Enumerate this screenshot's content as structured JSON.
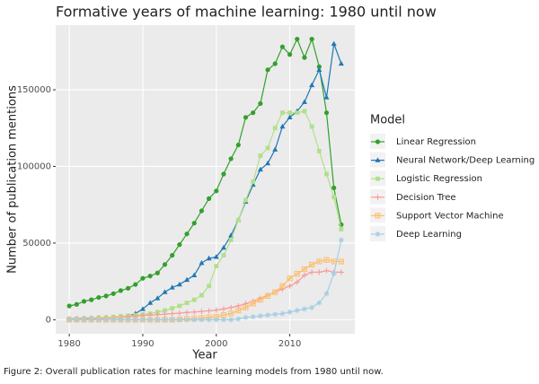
{
  "chart_data": {
    "type": "line",
    "title": "Formative years of machine learning: 1980 until now",
    "x_label": "Year",
    "y_label": "Number of publication mentions",
    "legend_title": "Model",
    "legend_position": "right",
    "caption": "Figure 2: Overall publication rates for machine learning models from 1980 until now.",
    "grid": true,
    "x": [
      1980,
      1981,
      1982,
      1983,
      1984,
      1985,
      1986,
      1987,
      1988,
      1989,
      1990,
      1991,
      1992,
      1993,
      1994,
      1995,
      1996,
      1997,
      1998,
      1999,
      2000,
      2001,
      2002,
      2003,
      2004,
      2005,
      2006,
      2007,
      2008,
      2009,
      2010,
      2011,
      2012,
      2013,
      2014,
      2015,
      2016,
      2017
    ],
    "xlim": [
      1978.15,
      2018.85
    ],
    "xticks": [
      1980,
      1990,
      2000,
      2010
    ],
    "ylim": [
      -9150,
      192150
    ],
    "yticks": [
      0,
      50000,
      100000,
      150000
    ],
    "series": [
      {
        "name": "Linear Regression",
        "color": "#33a02c",
        "marker": "circle",
        "values": [
          9000,
          10000,
          12000,
          13000,
          14500,
          15500,
          17000,
          19000,
          20500,
          23000,
          27000,
          28500,
          30500,
          36000,
          42000,
          49000,
          56000,
          63000,
          71000,
          79000,
          84000,
          95000,
          105000,
          114000,
          132000,
          135000,
          141000,
          163000,
          167000,
          178000,
          173000,
          183000,
          171000,
          183000,
          165000,
          135000,
          86000,
          62000
        ]
      },
      {
        "name": "Neural Network/Deep Learning",
        "color": "#1f78b4",
        "marker": "triangle",
        "values": [
          500,
          700,
          900,
          1000,
          1200,
          1300,
          1500,
          1800,
          2200,
          4000,
          7000,
          11000,
          14000,
          18000,
          21000,
          23000,
          26000,
          29000,
          37000,
          40000,
          41000,
          47000,
          55000,
          65000,
          77000,
          88000,
          98000,
          102000,
          111000,
          126000,
          132000,
          136000,
          142000,
          153000,
          163000,
          145000,
          180000,
          167000
        ]
      },
      {
        "name": "Logistic Regression",
        "color": "#b2df8a",
        "marker": "square",
        "values": [
          300,
          500,
          700,
          900,
          1200,
          1500,
          1800,
          2200,
          2600,
          3000,
          3500,
          4000,
          5000,
          6000,
          7500,
          9000,
          11000,
          13000,
          16000,
          22000,
          35000,
          42000,
          52000,
          65000,
          78000,
          90000,
          107000,
          112000,
          125000,
          135000,
          135000,
          135000,
          136000,
          126000,
          110000,
          95000,
          80000,
          59000
        ]
      },
      {
        "name": "Decision Tree",
        "color": "#fb9a99",
        "marker": "plus",
        "values": [
          0,
          200,
          400,
          600,
          800,
          1000,
          1300,
          1600,
          2000,
          2400,
          2800,
          3000,
          3300,
          3600,
          4000,
          4300,
          4700,
          5000,
          5400,
          5800,
          6300,
          7000,
          8000,
          9000,
          10500,
          12000,
          14000,
          16000,
          18000,
          20000,
          22000,
          24500,
          29000,
          31000,
          31000,
          32000,
          31000,
          31000
        ]
      },
      {
        "name": "Support Vector Machine",
        "color": "#fdbf6f",
        "marker": "boxplus",
        "values": [
          0,
          0,
          0,
          0,
          0,
          0,
          0,
          0,
          0,
          0,
          0,
          0,
          0,
          0,
          0,
          300,
          600,
          900,
          1200,
          1600,
          2000,
          3000,
          4000,
          6000,
          8000,
          10500,
          13000,
          15500,
          18000,
          22000,
          27000,
          30000,
          33000,
          36000,
          38000,
          39000,
          38000,
          38000
        ]
      },
      {
        "name": "Deep Learning",
        "color": "#a6cee3",
        "marker": "asterisk",
        "values": [
          0,
          0,
          0,
          0,
          0,
          0,
          0,
          0,
          0,
          0,
          0,
          0,
          0,
          0,
          0,
          0,
          0,
          0,
          0,
          0,
          0,
          0,
          0,
          500,
          1500,
          2000,
          2500,
          3000,
          3500,
          4000,
          5000,
          6000,
          7000,
          8000,
          11000,
          17000,
          30000,
          52000
        ]
      }
    ]
  }
}
